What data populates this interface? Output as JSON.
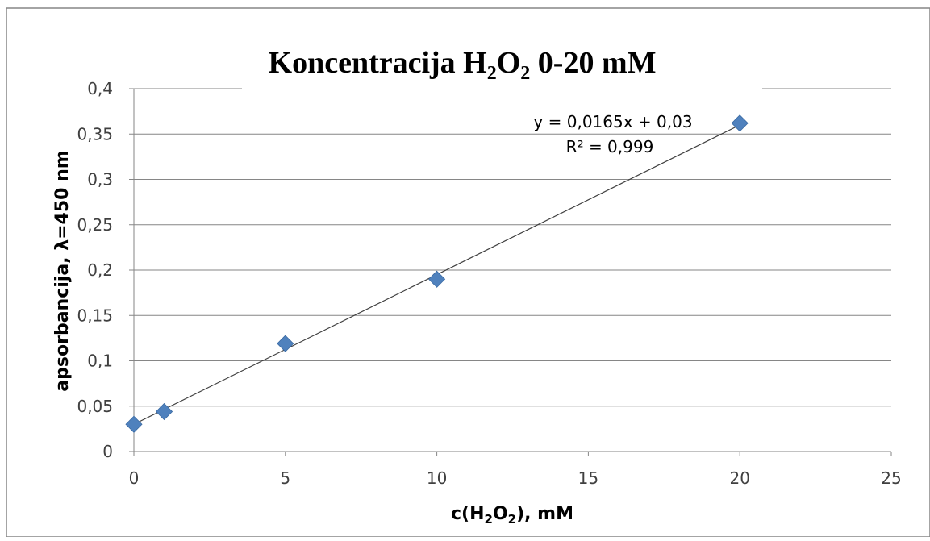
{
  "chart_data": {
    "type": "scatter",
    "title": {
      "main": "Koncentracija H",
      "sub1": "2",
      "mid": "O",
      "sub2": "2",
      "tail": " 0-20 mM"
    },
    "xlabel": {
      "pre": "c(H",
      "sub1": "2",
      "mid": "O",
      "sub2": "2",
      "post": "), mM"
    },
    "ylabel": "apsorbancija, λ=450 nm",
    "xlim": [
      0,
      25
    ],
    "ylim": [
      0,
      0.4
    ],
    "x_ticks": [
      {
        "value": 0,
        "label": "0"
      },
      {
        "value": 5,
        "label": "5"
      },
      {
        "value": 10,
        "label": "10"
      },
      {
        "value": 15,
        "label": "15"
      },
      {
        "value": 20,
        "label": "20"
      },
      {
        "value": 25,
        "label": "25"
      }
    ],
    "y_ticks": [
      {
        "value": 0,
        "label": "0"
      },
      {
        "value": 0.05,
        "label": "0,05"
      },
      {
        "value": 0.1,
        "label": "0,1"
      },
      {
        "value": 0.15,
        "label": "0,15"
      },
      {
        "value": 0.2,
        "label": "0,2"
      },
      {
        "value": 0.25,
        "label": "0,25"
      },
      {
        "value": 0.3,
        "label": "0,3"
      },
      {
        "value": 0.35,
        "label": "0,35"
      },
      {
        "value": 0.4,
        "label": "0,4"
      }
    ],
    "grid": "horizontal",
    "series": [
      {
        "x": [
          0,
          1,
          5,
          10,
          20
        ],
        "y": [
          0.03,
          0.044,
          0.119,
          0.19,
          0.362
        ],
        "marker": "diamond",
        "color": "#4f81bd"
      }
    ],
    "trendline": {
      "slope": 0.0165,
      "intercept": 0.03,
      "x_range": [
        0,
        20
      ],
      "equation": "y = 0,0165x + 0,03",
      "r2_label": "R² = 0,999",
      "color": "#404040"
    },
    "colors": {
      "grid": "#868686",
      "axis": "#868686",
      "border": "#868686",
      "text": "#404040"
    }
  }
}
